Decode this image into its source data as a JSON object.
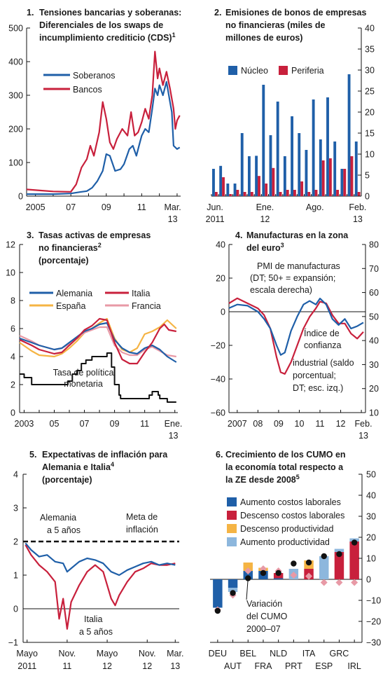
{
  "colors": {
    "blue": "#1f5fa8",
    "red": "#c8203c",
    "orange": "#f5b444",
    "pink": "#e89aa6",
    "lightblue": "#8db7dd",
    "black": "#111111"
  },
  "chart_data": [
    {
      "type": "line",
      "number": "1.",
      "title_lines": [
        "Tensiones bancarias y soberanas:",
        "Diferenciales de los swaps de",
        "incumplimiento crediticio (CDS)"
      ],
      "title_sup": "1",
      "ylim": [
        0,
        500
      ],
      "yticks": [
        "0",
        "100",
        "200",
        "300",
        "400",
        "500"
      ],
      "xticks": [
        "2005",
        "07",
        "09",
        "11",
        "Mar."
      ],
      "xticks2": [
        "13"
      ],
      "xrange": [
        2004.5,
        2013.2
      ],
      "xtick_pos": [
        2005,
        2007,
        2009,
        2011,
        2012.75
      ],
      "series": [
        {
          "name": "Soberanos",
          "color": "blue",
          "x": [
            2004.5,
            2005,
            2006,
            2007,
            2007.5,
            2007.9,
            2008.2,
            2008.5,
            2008.8,
            2009,
            2009.2,
            2009.5,
            2009.8,
            2010.0,
            2010.3,
            2010.5,
            2010.7,
            2010.9,
            2011.0,
            2011.2,
            2011.4,
            2011.6,
            2011.75,
            2011.9,
            2012.0,
            2012.2,
            2012.4,
            2012.5,
            2012.6,
            2012.7,
            2012.8,
            2013.0,
            2013.15
          ],
          "y": [
            6,
            6,
            6,
            8,
            12,
            15,
            25,
            45,
            75,
            125,
            120,
            75,
            80,
            95,
            140,
            150,
            120,
            160,
            180,
            200,
            190,
            260,
            320,
            300,
            330,
            300,
            340,
            310,
            280,
            250,
            150,
            140,
            145
          ]
        },
        {
          "name": "Bancos",
          "color": "red",
          "x": [
            2004.5,
            2005,
            2006,
            2007,
            2007.3,
            2007.6,
            2007.9,
            2008.1,
            2008.3,
            2008.6,
            2008.8,
            2009,
            2009.2,
            2009.4,
            2009.6,
            2009.9,
            2010.2,
            2010.4,
            2010.6,
            2010.8,
            2011.0,
            2011.2,
            2011.4,
            2011.6,
            2011.75,
            2011.9,
            2012.0,
            2012.2,
            2012.4,
            2012.6,
            2012.8,
            2012.9,
            2013.0,
            2013.15
          ],
          "y": [
            20,
            18,
            14,
            13,
            35,
            85,
            110,
            150,
            120,
            190,
            280,
            230,
            160,
            140,
            170,
            200,
            180,
            250,
            180,
            190,
            220,
            260,
            230,
            300,
            430,
            350,
            380,
            330,
            370,
            320,
            260,
            200,
            225,
            240
          ]
        }
      ]
    },
    {
      "type": "bar",
      "number": "2.",
      "title_lines": [
        "Emisiones de bonos de empresas",
        "no financieras (miles de",
        "millones de euros)"
      ],
      "ylim": [
        0,
        40
      ],
      "yticks": [
        "0",
        "5",
        "10",
        "15",
        "20",
        "25",
        "30",
        "35",
        "40"
      ],
      "xticks": [
        "Jun.",
        "Ene.",
        "Ago.",
        "Feb."
      ],
      "xticks2": [
        "2011",
        "12",
        "",
        "13"
      ],
      "xtick_idx": [
        0.5,
        7.5,
        14.5,
        20.5
      ],
      "categories": [
        "2011-06",
        "2011-07",
        "2011-08",
        "2011-09",
        "2011-10",
        "2011-11",
        "2011-12",
        "2012-01",
        "2012-02",
        "2012-03",
        "2012-04",
        "2012-05",
        "2012-06",
        "2012-07",
        "2012-08",
        "2012-09",
        "2012-10",
        "2012-11",
        "2012-12",
        "2013-01",
        "2013-02"
      ],
      "series": [
        {
          "name": "Núcleo",
          "color": "blue",
          "values": [
            6.5,
            7.2,
            3.0,
            3.0,
            15.0,
            9.5,
            9.6,
            26.5,
            14.5,
            22.5,
            9.5,
            19.0,
            15.0,
            11.0,
            23.0,
            13.5,
            23.5,
            13.0,
            6.5,
            29.0,
            13.0
          ]
        },
        {
          "name": "Periferia",
          "color": "red",
          "values": [
            1.0,
            4.5,
            0.5,
            1.5,
            1.0,
            1.0,
            4.8,
            3.0,
            6.7,
            1.0,
            1.5,
            1.5,
            3.5,
            1.0,
            1.5,
            8.5,
            9.0,
            1.5,
            6.5,
            9.5,
            1.0
          ]
        }
      ]
    },
    {
      "type": "line",
      "number": "3.",
      "title_lines": [
        "Tasas activas de empresas",
        "no financieras",
        "(porcentaje)"
      ],
      "title_sup_line2": "2",
      "ylim": [
        0,
        12
      ],
      "yticks": [
        "0",
        "2",
        "4",
        "6",
        "8",
        "10",
        "12"
      ],
      "xticks": [
        "2003",
        "05",
        "07",
        "09",
        "11",
        "Ene."
      ],
      "xticks2": [
        "13"
      ],
      "xrange": [
        2002.7,
        2013.2
      ],
      "xtick_pos": [
        2003,
        2005,
        2007,
        2009,
        2011,
        2012.9
      ],
      "annotation": [
        "Tasa de política",
        "monetaria"
      ],
      "series": [
        {
          "name": "Alemania",
          "color": "blue",
          "x": [
            2002.7,
            2003.5,
            2004,
            2005,
            2005.5,
            2006,
            2006.5,
            2007,
            2007.5,
            2008,
            2008.5,
            2009,
            2009.5,
            2010,
            2010.5,
            2011,
            2011.5,
            2012,
            2012.5,
            2013.1
          ],
          "y": [
            5.3,
            5.0,
            4.8,
            4.5,
            4.6,
            5.0,
            5.4,
            5.8,
            6.0,
            6.3,
            6.4,
            5.2,
            4.6,
            4.3,
            4.2,
            4.6,
            4.8,
            4.5,
            4.0,
            3.6
          ]
        },
        {
          "name": "Italia",
          "color": "red",
          "x": [
            2002.7,
            2003.5,
            2004,
            2005,
            2005.5,
            2006,
            2006.5,
            2007,
            2007.5,
            2008,
            2008.5,
            2009,
            2009.5,
            2010,
            2010.5,
            2011,
            2011.5,
            2012,
            2012.3,
            2012.6,
            2013.1
          ],
          "y": [
            5.2,
            4.8,
            4.5,
            4.2,
            4.3,
            4.8,
            5.3,
            5.9,
            6.2,
            6.7,
            6.6,
            5.0,
            3.8,
            3.5,
            3.5,
            4.3,
            5.0,
            6.0,
            6.3,
            5.9,
            5.8
          ]
        },
        {
          "name": "España",
          "color": "orange",
          "x": [
            2002.7,
            2003.5,
            2004,
            2005,
            2005.5,
            2006,
            2006.5,
            2007,
            2007.5,
            2008,
            2008.5,
            2009,
            2009.5,
            2010,
            2010.5,
            2011,
            2011.5,
            2012,
            2012.5,
            2013.1
          ],
          "y": [
            5.0,
            4.4,
            4.1,
            4.0,
            4.2,
            4.6,
            5.1,
            5.7,
            6.0,
            6.4,
            6.7,
            5.3,
            4.5,
            4.3,
            4.6,
            5.6,
            5.8,
            6.1,
            6.6,
            6.0
          ]
        },
        {
          "name": "Francia",
          "color": "pink",
          "x": [
            2002.7,
            2003.5,
            2004,
            2005,
            2005.5,
            2006,
            2006.5,
            2007,
            2007.5,
            2008,
            2008.5,
            2009,
            2009.5,
            2010,
            2010.5,
            2011,
            2011.5,
            2012,
            2012.5,
            2013.1
          ],
          "y": [
            5.5,
            5.1,
            4.8,
            4.5,
            4.6,
            4.9,
            5.3,
            5.7,
            5.9,
            6.1,
            6.1,
            4.8,
            4.3,
            4.1,
            4.1,
            4.5,
            4.7,
            4.4,
            4.1,
            4.0
          ]
        },
        {
          "name": "Tasa de política monetaria",
          "color": "black",
          "step": true,
          "x": [
            2002.7,
            2003.0,
            2003.5,
            2005.9,
            2006.2,
            2006.5,
            2006.8,
            2007.1,
            2007.5,
            2008.5,
            2008.8,
            2009.0,
            2009.3,
            2009.4,
            2011.3,
            2011.5,
            2011.9,
            2012.0,
            2012.5,
            2013.1
          ],
          "y": [
            2.75,
            2.5,
            2.0,
            2.25,
            2.75,
            3.0,
            3.5,
            3.75,
            4.0,
            4.25,
            3.25,
            2.0,
            1.25,
            1.0,
            1.25,
            1.5,
            1.25,
            1.0,
            0.75,
            0.75
          ]
        }
      ]
    },
    {
      "type": "line",
      "number": "4.",
      "title_lines": [
        "Manufacturas en la zona",
        "del euro"
      ],
      "title_sup_line2": "3",
      "ylim": [
        -60,
        40
      ],
      "yticks": [
        "−60",
        "−40",
        "−20",
        "0",
        "20",
        "40"
      ],
      "y2lim": [
        10,
        80
      ],
      "y2ticks": [
        "10",
        "20",
        "30",
        "40",
        "50",
        "60",
        "70",
        "80"
      ],
      "xticks": [
        "2007",
        "08",
        "09",
        "10",
        "11",
        "12",
        "Feb."
      ],
      "xticks2": [
        "13"
      ],
      "xrange": [
        2006.6,
        2013.2
      ],
      "xtick_pos": [
        2007,
        2008,
        2009,
        2010,
        2011,
        2012,
        2013.1
      ],
      "annotation_pmi": [
        "PMI de manufacturas",
        "(DT; 50+ = expansión;",
        "escala derecha)"
      ],
      "annotation_ind": [
        "Índice de",
        "confianza",
        "industrial (saldo",
        "porcentual;",
        "DT; esc. izq.)"
      ],
      "series": [
        {
          "name": "PMI de manufacturas",
          "color": "blue",
          "x": [
            2006.6,
            2007,
            2007.5,
            2008,
            2008.3,
            2008.6,
            2008.9,
            2009.1,
            2009.3,
            2009.6,
            2009.9,
            2010.2,
            2010.5,
            2010.8,
            2011.0,
            2011.3,
            2011.6,
            2011.9,
            2012.2,
            2012.5,
            2012.8,
            2013.1
          ],
          "y": [
            53.5,
            55,
            54.5,
            52,
            49,
            45,
            38,
            34,
            35,
            44,
            50,
            55,
            56.5,
            55,
            57.5,
            55,
            49,
            46.5,
            49,
            45,
            46,
            47.5
          ]
        },
        {
          "name": "Índice de confianza industrial",
          "color": "red",
          "x": [
            2006.6,
            2007,
            2007.5,
            2008,
            2008.3,
            2008.6,
            2008.9,
            2009.1,
            2009.3,
            2009.6,
            2009.9,
            2010.2,
            2010.5,
            2010.8,
            2011.0,
            2011.3,
            2011.6,
            2011.9,
            2012.2,
            2012.5,
            2012.8,
            2013.1
          ],
          "y": [
            5,
            8,
            5,
            2,
            -2,
            -10,
            -27,
            -36,
            -37,
            -30,
            -20,
            -10,
            -3,
            2,
            6,
            5,
            -2,
            -7,
            -7,
            -13,
            -16,
            -12
          ]
        }
      ]
    },
    {
      "type": "line",
      "number": "5.",
      "title_lines": [
        "Expectativas de inflación para",
        "Alemania e Italia",
        "(porcentaje)"
      ],
      "title_sup_line2": "4",
      "ylim": [
        -1,
        4
      ],
      "yticks": [
        "−1",
        "0",
        "1",
        "2",
        "3",
        "4"
      ],
      "xticks": [
        "Mayo",
        "Nov.",
        "Mayo",
        "Nov.",
        "Mar."
      ],
      "xticks2": [
        "2011",
        "11",
        "12",
        "12",
        "13"
      ],
      "xrange": [
        2011.3,
        2013.25
      ],
      "xtick_pos": [
        2011.35,
        2011.85,
        2012.35,
        2012.85,
        2013.2
      ],
      "annotation_ger": [
        "Alemania",
        "a 5 años"
      ],
      "annotation_ita": [
        "Italia",
        "a 5 años"
      ],
      "annotation_target": [
        "Meta de",
        "inflación"
      ],
      "target": 2,
      "series": [
        {
          "name": "Alemania a 5 años",
          "color": "blue",
          "x": [
            2011.33,
            2011.4,
            2011.5,
            2011.6,
            2011.7,
            2011.8,
            2011.85,
            2011.9,
            2012.0,
            2012.1,
            2012.2,
            2012.3,
            2012.4,
            2012.5,
            2012.6,
            2012.7,
            2012.8,
            2012.9,
            2013.0,
            2013.1,
            2013.2
          ],
          "y": [
            1.95,
            1.75,
            1.55,
            1.6,
            1.4,
            1.35,
            1.1,
            1.2,
            1.4,
            1.5,
            1.45,
            1.35,
            1.1,
            1.0,
            1.15,
            1.25,
            1.35,
            1.4,
            1.3,
            1.35,
            1.3
          ]
        },
        {
          "name": "Italia a 5 años",
          "color": "red",
          "x": [
            2011.33,
            2011.4,
            2011.5,
            2011.6,
            2011.7,
            2011.75,
            2011.8,
            2011.85,
            2011.9,
            2012.0,
            2012.1,
            2012.2,
            2012.3,
            2012.4,
            2012.45,
            2012.5,
            2012.6,
            2012.7,
            2012.8,
            2012.9,
            2013.0,
            2013.1,
            2013.2
          ],
          "y": [
            1.9,
            1.6,
            1.3,
            1.1,
            0.8,
            -0.3,
            0.3,
            -0.6,
            0.2,
            0.7,
            1.1,
            1.3,
            1.1,
            0.3,
            0.1,
            0.4,
            0.8,
            1.1,
            1.2,
            1.35,
            1.3,
            1.3,
            1.35
          ]
        }
      ]
    },
    {
      "type": "bar",
      "number": "6.",
      "title_lines": [
        "Crecimiento de los CUMO en",
        "la economía total respecto a",
        "la ZE desde 2008"
      ],
      "title_sup_line3": "5",
      "ylim": [
        -30,
        50
      ],
      "yticks": [
        "−30",
        "−20",
        "−10",
        "0",
        "10",
        "20",
        "30",
        "40",
        "50"
      ],
      "categories_top": [
        "DEU",
        "BEL",
        "NLD",
        "ITA",
        "GRC"
      ],
      "categories_bottom": [
        "AUT",
        "FRA",
        "PRT",
        "ESP",
        "IRL"
      ],
      "categories": [
        "DEU",
        "AUT",
        "BEL",
        "FRA",
        "NLD",
        "PRT",
        "ITA",
        "ESP",
        "GRC",
        "IRL"
      ],
      "annotation": [
        "Variación",
        "del CUMO",
        "2000–07"
      ],
      "series": [
        {
          "name": "Aumento costos laborales",
          "color": "blue",
          "values": [
            -13.5,
            -4,
            4,
            4,
            0.5,
            0,
            0,
            0,
            0,
            0
          ]
        },
        {
          "name": "Descenso costos laborales",
          "color": "red",
          "values": [
            0,
            0,
            0,
            0,
            2.5,
            0,
            5,
            0,
            13,
            18
          ]
        },
        {
          "name": "Descenso productividad",
          "color": "orange",
          "values": [
            0,
            0,
            4,
            1.5,
            0,
            0,
            4,
            0,
            0,
            0
          ]
        },
        {
          "name": "Aumento productividad",
          "color": "lightblue",
          "values": [
            0,
            -2,
            0,
            0,
            0,
            5,
            0,
            11,
            1.5,
            1.5
          ]
        }
      ],
      "variation_2000_07": [
        -15,
        -6.5,
        0.5,
        3,
        3,
        7.5,
        8,
        11,
        12,
        17.5
      ],
      "pink_diamonds": [
        -14.5,
        -7.5,
        4,
        5,
        4,
        2,
        1.5,
        -1.5,
        -1.5,
        -1.5
      ]
    }
  ]
}
